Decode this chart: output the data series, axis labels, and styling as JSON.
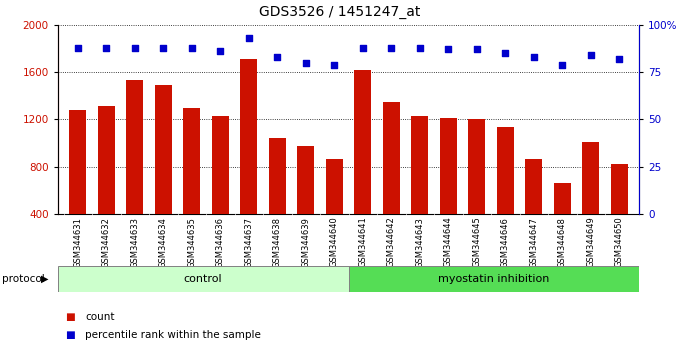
{
  "title": "GDS3526 / 1451247_at",
  "samples": [
    "GSM344631",
    "GSM344632",
    "GSM344633",
    "GSM344634",
    "GSM344635",
    "GSM344636",
    "GSM344637",
    "GSM344638",
    "GSM344639",
    "GSM344640",
    "GSM344641",
    "GSM344642",
    "GSM344643",
    "GSM344644",
    "GSM344645",
    "GSM344646",
    "GSM344647",
    "GSM344648",
    "GSM344649",
    "GSM344650"
  ],
  "counts": [
    1280,
    1310,
    1530,
    1490,
    1300,
    1230,
    1710,
    1040,
    980,
    870,
    1620,
    1350,
    1230,
    1210,
    1200,
    1140,
    870,
    660,
    1010,
    820
  ],
  "percentiles": [
    88,
    88,
    88,
    88,
    88,
    86,
    93,
    83,
    80,
    79,
    88,
    88,
    88,
    87,
    87,
    85,
    83,
    79,
    84,
    82
  ],
  "n_control": 10,
  "n_myostatin": 10,
  "ylim_left": [
    400,
    2000
  ],
  "ylim_right": [
    0,
    100
  ],
  "yticks_left": [
    400,
    800,
    1200,
    1600,
    2000
  ],
  "yticks_right": [
    0,
    25,
    50,
    75,
    100
  ],
  "bar_color": "#CC1100",
  "dot_color": "#0000CC",
  "bar_width": 0.6,
  "control_label": "control",
  "myostatin_label": "myostatin inhibition",
  "protocol_label": "protocol",
  "legend_count": "count",
  "legend_percentile": "percentile rank within the sample",
  "control_bg": "#ccffcc",
  "myostatin_bg": "#55dd55",
  "sample_bg": "#d4d4d4",
  "title_fontsize": 10
}
